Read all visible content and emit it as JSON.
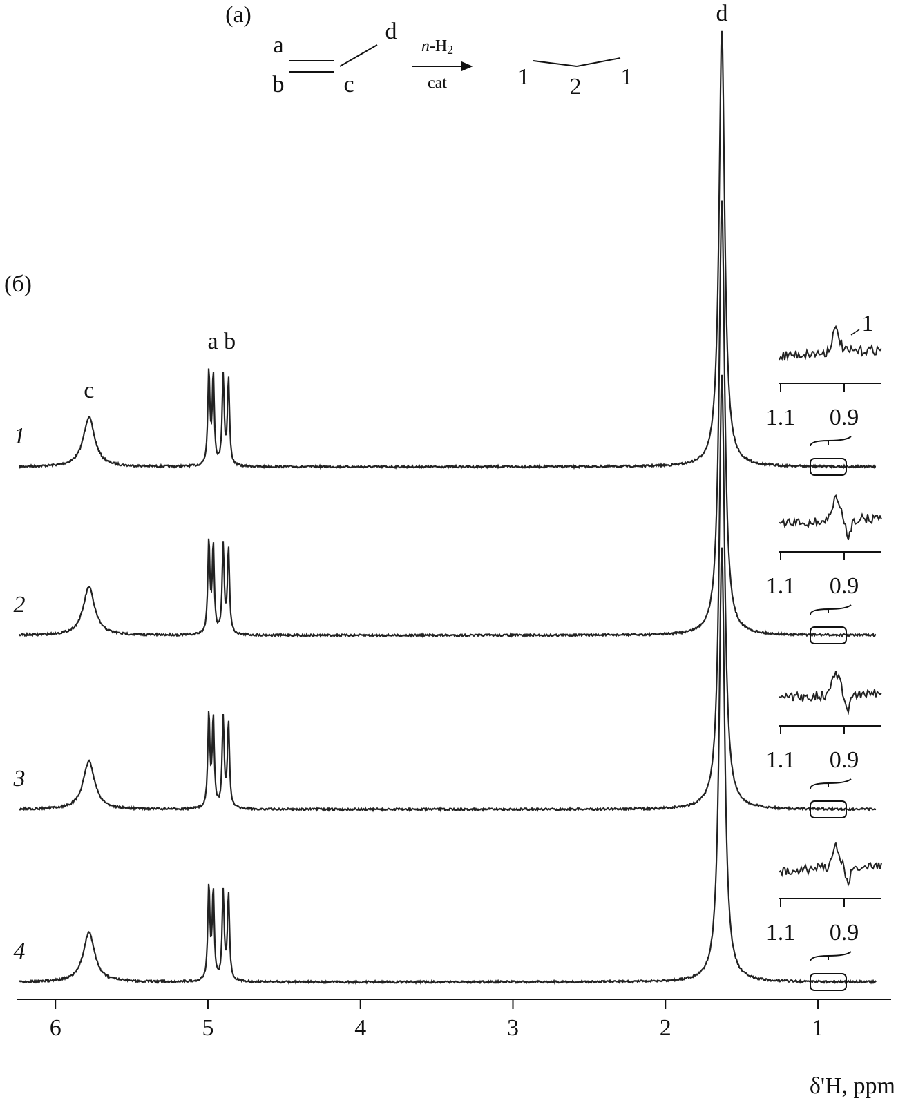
{
  "scheme": {
    "panel": "(a)",
    "a": "a",
    "b": "b",
    "c": "c",
    "d": "d",
    "reagent_n": "n",
    "reagent": "-H",
    "reagent_sub": "2",
    "catalyst": "cat",
    "product_1": "1",
    "product_2": "2",
    "product_3": "1"
  },
  "chart_data": {
    "type": "spectrum",
    "panel": "(б)",
    "xlabel": "δ'H, ppm",
    "xlim": [
      6.25,
      0.52
    ],
    "xticks": [
      6,
      5,
      4,
      3,
      2,
      1
    ],
    "annotations": [
      {
        "text": "c",
        "x": 5.78
      },
      {
        "text": "a b",
        "x": 4.91
      },
      {
        "text": "d",
        "x": 1.63
      }
    ],
    "series": [
      {
        "name": "1",
        "color": "#222222",
        "peaks": [
          [
            5.78,
            7.2,
            0.045
          ],
          [
            4.994,
            13.7,
            0.008
          ],
          [
            4.965,
            12.8,
            0.008
          ],
          [
            4.9,
            12.9,
            0.008
          ],
          [
            4.865,
            12.5,
            0.008
          ],
          [
            1.63,
            63.2,
            0.022
          ]
        ]
      },
      {
        "name": "2",
        "color": "#222222",
        "peaks": [
          [
            5.78,
            7,
            0.045
          ],
          [
            4.994,
            13.5,
            0.008
          ],
          [
            4.965,
            12.6,
            0.008
          ],
          [
            4.9,
            12.7,
            0.008
          ],
          [
            4.865,
            12.4,
            0.008
          ],
          [
            1.63,
            63,
            0.022
          ]
        ]
      },
      {
        "name": "3",
        "color": "#222222",
        "peaks": [
          [
            5.78,
            7,
            0.045
          ],
          [
            4.994,
            13.7,
            0.008
          ],
          [
            4.965,
            12.8,
            0.008
          ],
          [
            4.9,
            12.8,
            0.008
          ],
          [
            4.865,
            12.4,
            0.008
          ],
          [
            1.63,
            63,
            0.022
          ]
        ]
      },
      {
        "name": "4",
        "color": "#222222",
        "peaks": [
          [
            5.78,
            7.2,
            0.045
          ],
          [
            4.994,
            13.7,
            0.008
          ],
          [
            4.965,
            12.8,
            0.008
          ],
          [
            4.9,
            12.8,
            0.008
          ],
          [
            4.865,
            12.4,
            0.008
          ],
          [
            1.63,
            63,
            0.022
          ]
        ]
      }
    ],
    "inset": {
      "xticks": [
        1.1,
        0.9
      ],
      "label": "1"
    }
  }
}
